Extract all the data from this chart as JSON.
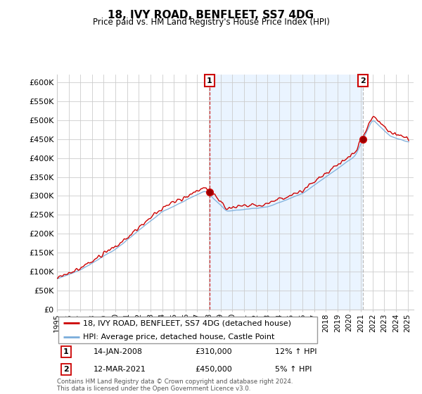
{
  "title": "18, IVY ROAD, BENFLEET, SS7 4DG",
  "subtitle": "Price paid vs. HM Land Registry's House Price Index (HPI)",
  "legend_line1": "18, IVY ROAD, BENFLEET, SS7 4DG (detached house)",
  "legend_line2": "HPI: Average price, detached house, Castle Point",
  "annotation1_label": "1",
  "annotation1_date": "14-JAN-2008",
  "annotation1_price": "£310,000",
  "annotation1_hpi": "12% ↑ HPI",
  "annotation2_label": "2",
  "annotation2_date": "12-MAR-2021",
  "annotation2_price": "£450,000",
  "annotation2_hpi": "5% ↑ HPI",
  "footer": "Contains HM Land Registry data © Crown copyright and database right 2024.\nThis data is licensed under the Open Government Licence v3.0.",
  "red_color": "#cc0000",
  "blue_color": "#7aaddb",
  "vline1_color": "#cc0000",
  "vline2_color": "#aaaaaa",
  "fill_color": "#ddeeff",
  "annotation_box_color": "#cc0000",
  "background_color": "#ffffff",
  "ylim": [
    0,
    620000
  ],
  "yticks": [
    0,
    50000,
    100000,
    150000,
    200000,
    250000,
    300000,
    350000,
    400000,
    450000,
    500000,
    550000,
    600000
  ],
  "sale1_x": 2008.04,
  "sale1_y": 310000,
  "sale2_x": 2021.17,
  "sale2_y": 450000,
  "xmin": 1995,
  "xmax": 2025.5
}
